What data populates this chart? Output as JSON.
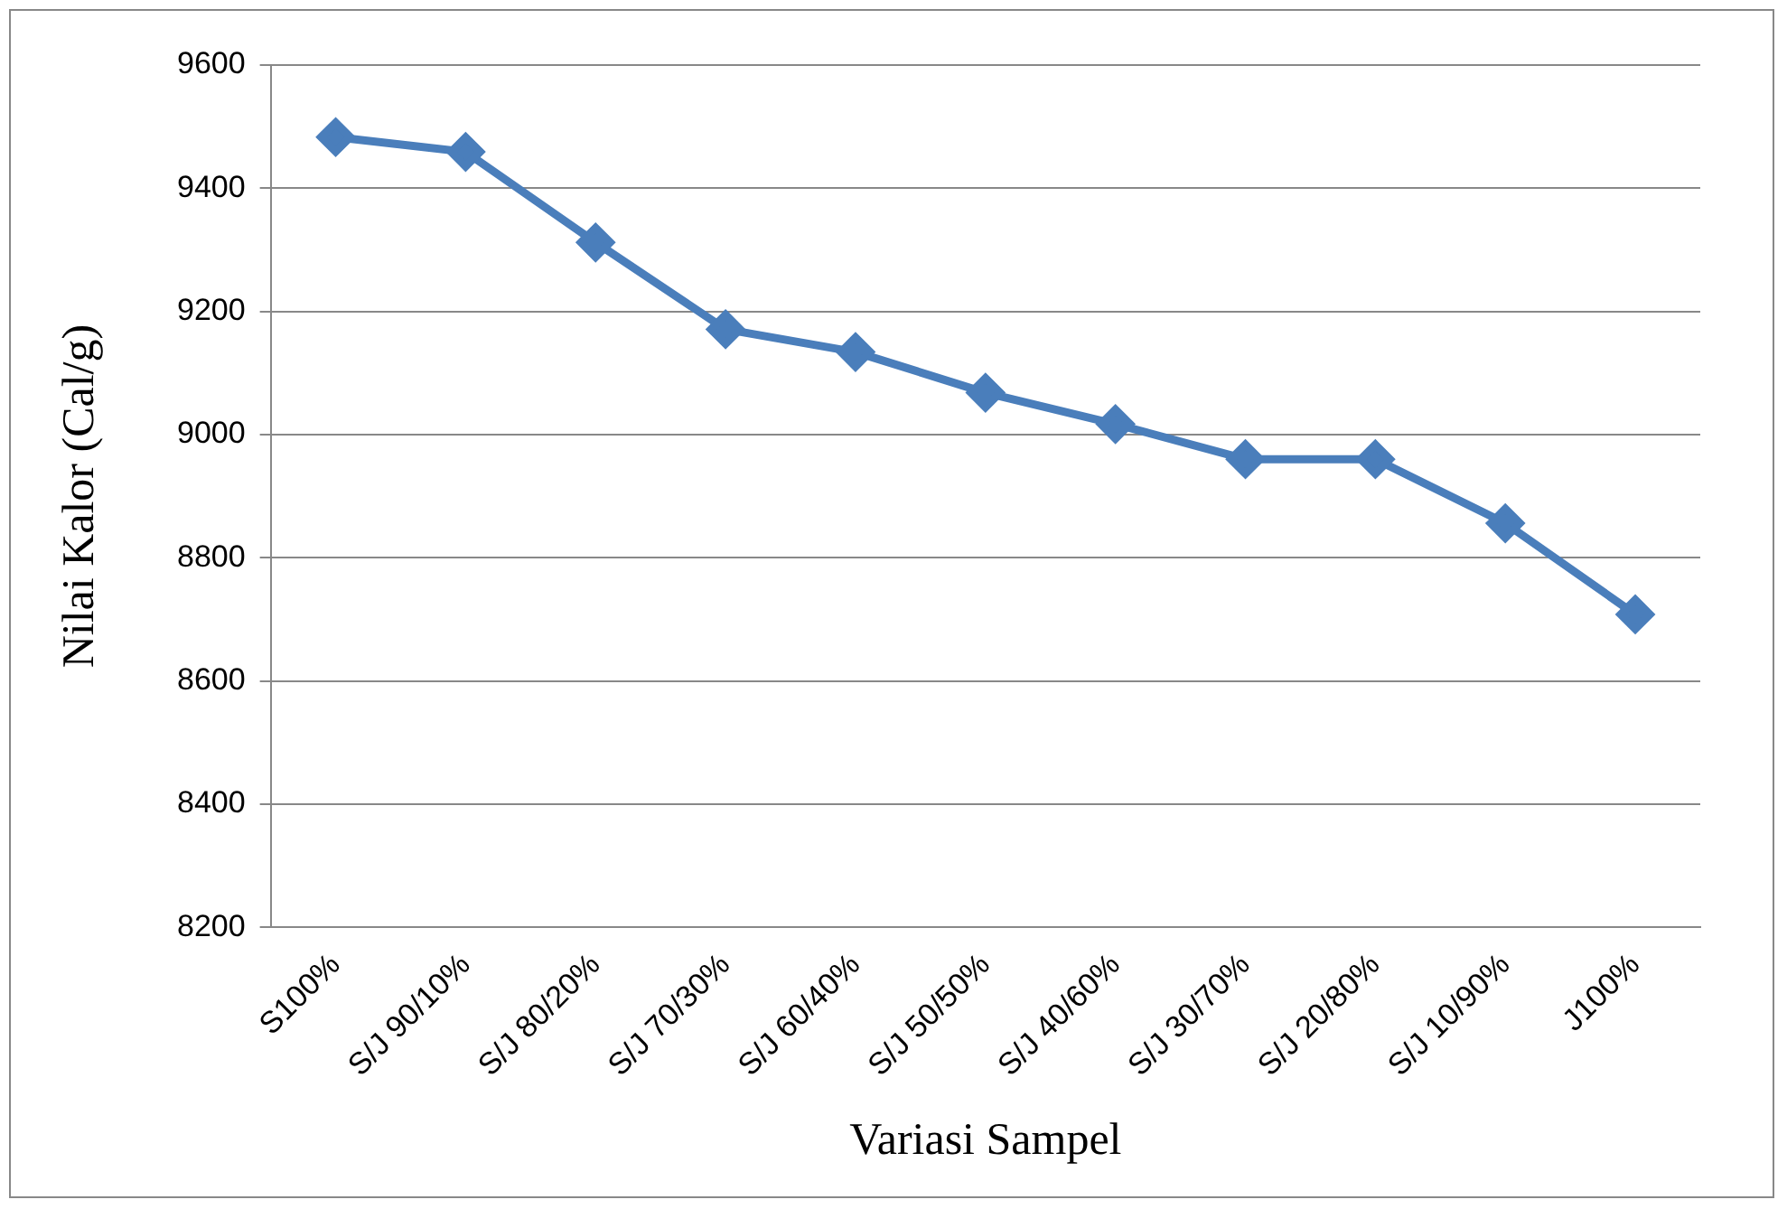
{
  "chart_data": {
    "type": "line",
    "xlabel": "Variasi Sampel",
    "ylabel": "Nilai Kalor (Cal/g)",
    "categories": [
      "S100%",
      "S/J 90/10%",
      "S/J 80/20%",
      "S/J 70/30%",
      "S/J 60/40%",
      "S/J 50/50%",
      "S/J 40/60%",
      "S/J 30/70%",
      "S/J 20/80%",
      "S/J 10/90%",
      "J100%"
    ],
    "series": [
      {
        "color": "#4a7ebb",
        "values": [
          9483,
          9459,
          9312,
          9171,
          9134,
          9068,
          9017,
          8960,
          8960,
          8856,
          8708
        ]
      }
    ],
    "ylim": [
      8200,
      9600
    ],
    "yticks": [
      8200,
      8400,
      8600,
      8800,
      9000,
      9200,
      9400,
      9600
    ],
    "grid": "y",
    "legend": false,
    "marker": "diamond",
    "line_style": "solid"
  }
}
